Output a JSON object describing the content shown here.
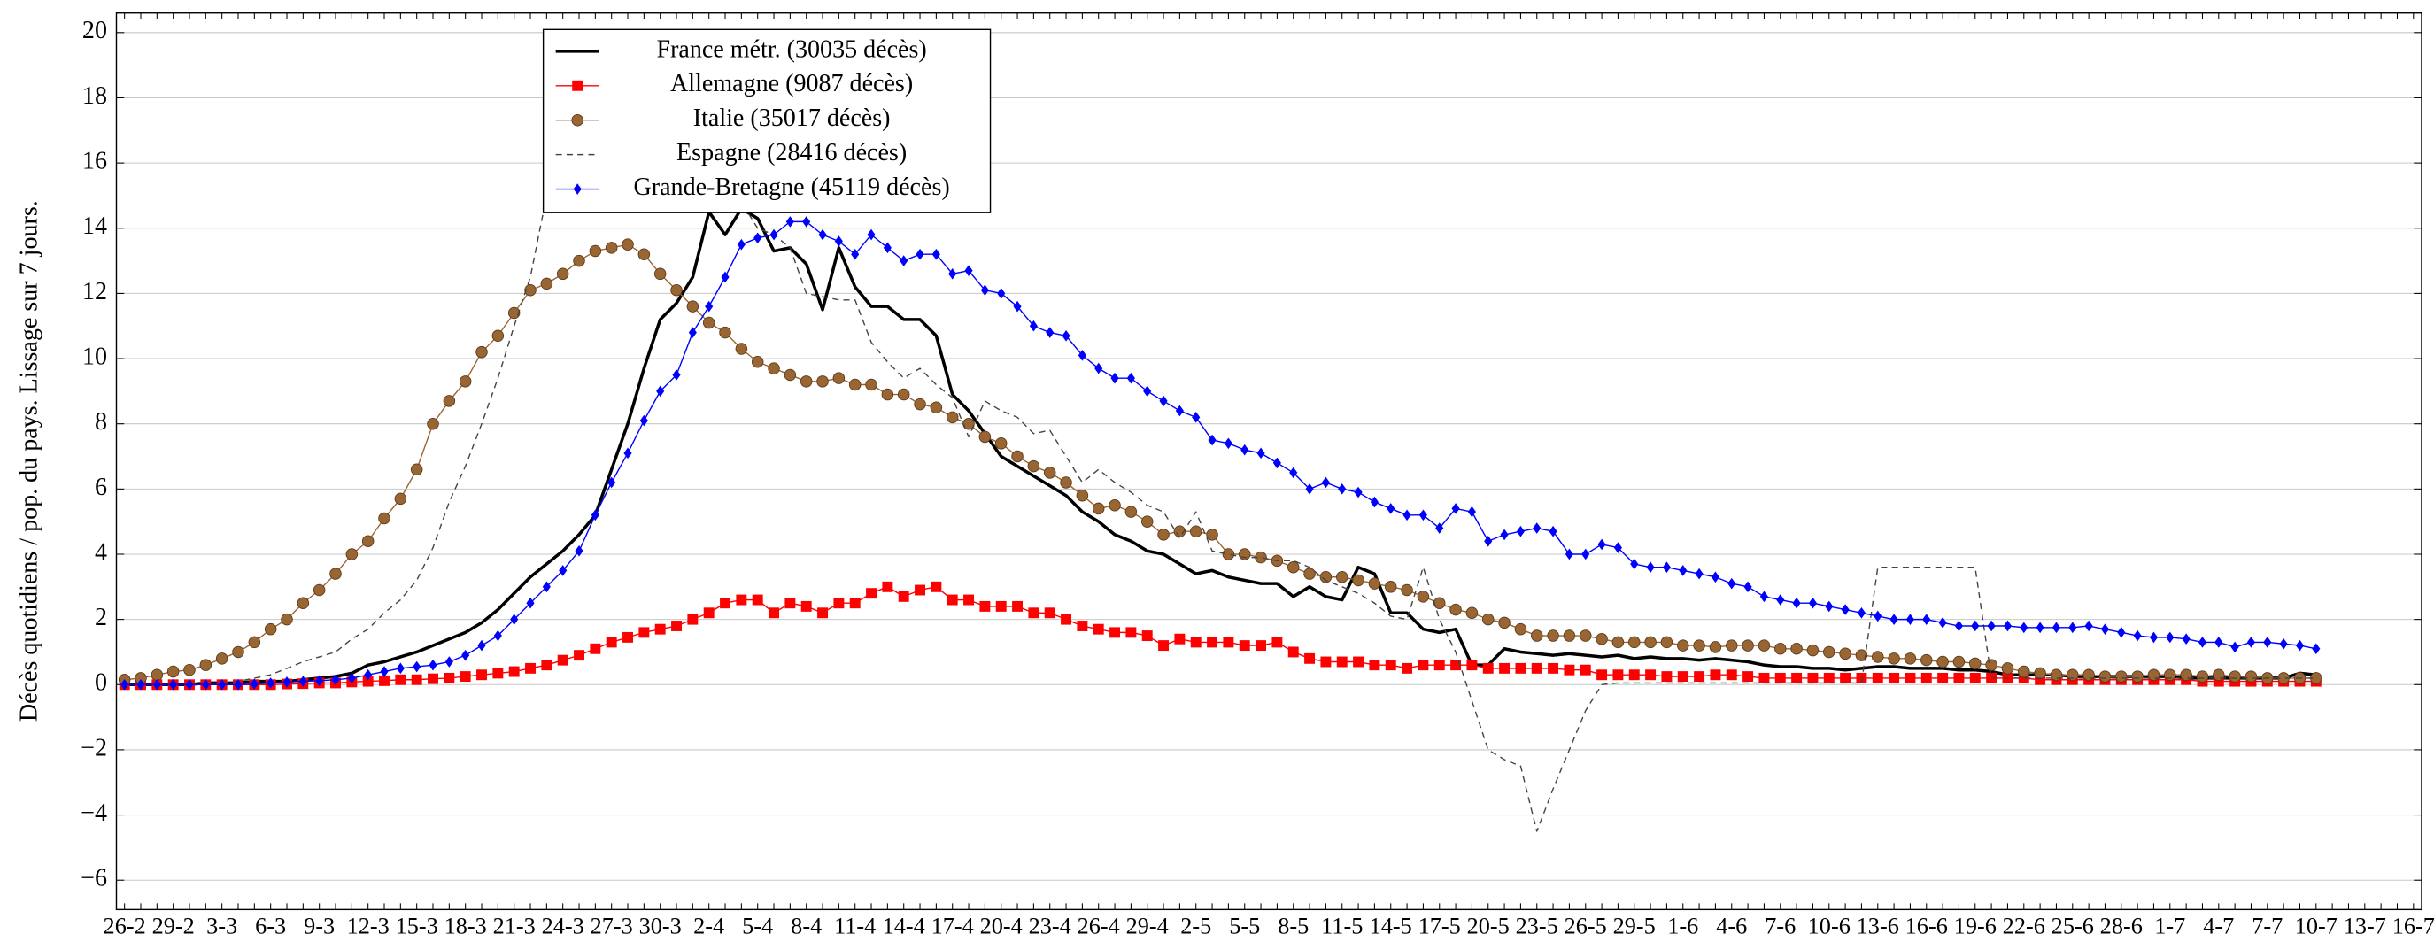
{
  "chart_data": {
    "type": "line",
    "y_label": "Décès quotidiens / pop. du pays. Lissage sur 7 jours.",
    "categories": [
      "26-2",
      null,
      null,
      "29-2",
      null,
      null,
      "3-3",
      null,
      null,
      "6-3",
      null,
      null,
      "9-3",
      null,
      null,
      "12-3",
      null,
      null,
      "15-3",
      null,
      null,
      "18-3",
      null,
      null,
      "21-3",
      null,
      null,
      "24-3",
      null,
      null,
      "27-3",
      null,
      null,
      "30-3",
      null,
      null,
      "2-4",
      null,
      null,
      "5-4",
      null,
      null,
      "8-4",
      null,
      null,
      "11-4",
      null,
      null,
      "14-4",
      null,
      null,
      "17-4",
      null,
      null,
      "20-4",
      null,
      null,
      "23-4",
      null,
      null,
      "26-4",
      null,
      null,
      "29-4",
      null,
      null,
      "2-5",
      null,
      null,
      "5-5",
      null,
      null,
      "8-5",
      null,
      null,
      "11-5",
      null,
      null,
      "14-5",
      null,
      null,
      "17-5",
      null,
      null,
      "20-5",
      null,
      null,
      "23-5",
      null,
      null,
      "26-5",
      null,
      null,
      "29-5",
      null,
      null,
      "1-6",
      null,
      null,
      "4-6",
      null,
      null,
      "7-6",
      null,
      null,
      "10-6",
      null,
      null,
      "13-6",
      null,
      null,
      "16-6",
      null,
      null,
      "19-6",
      null,
      null,
      "22-6",
      null,
      null,
      "25-6",
      null,
      null,
      "28-6",
      null,
      null,
      "1-7",
      null,
      null,
      "4-7",
      null,
      null,
      "7-7",
      null,
      null,
      "10-7",
      null,
      null,
      "13-7",
      null,
      null,
      "16-7"
    ],
    "series": [
      {
        "name": "France métr. (30035 décès)",
        "color": "#000000",
        "values": [
          0,
          0,
          0,
          0,
          0,
          0.05,
          0.05,
          0.05,
          0.1,
          0.1,
          0.1,
          0.15,
          0.2,
          0.25,
          0.35,
          0.6,
          0.7,
          0.85,
          1.0,
          1.2,
          1.4,
          1.6,
          1.9,
          2.3,
          2.8,
          3.3,
          3.7,
          4.1,
          4.6,
          5.2,
          6.6,
          8.0,
          9.7,
          11.2,
          11.7,
          12.5,
          14.5,
          13.8,
          14.6,
          14.3,
          13.3,
          13.4,
          12.9,
          11.5,
          13.4,
          12.2,
          11.6,
          11.6,
          11.2,
          11.2,
          10.7,
          8.9,
          8.4,
          7.7,
          7.0,
          6.7,
          6.4,
          6.1,
          5.8,
          5.3,
          5.0,
          4.6,
          4.4,
          4.1,
          4.0,
          3.7,
          3.4,
          3.5,
          3.3,
          3.2,
          3.1,
          3.1,
          2.7,
          3.0,
          2.7,
          2.6,
          3.6,
          3.4,
          2.2,
          2.2,
          1.7,
          1.6,
          1.7,
          0.6,
          0.6,
          1.1,
          1.0,
          0.95,
          0.9,
          0.95,
          0.9,
          0.85,
          0.9,
          0.8,
          0.85,
          0.8,
          0.8,
          0.75,
          0.8,
          0.75,
          0.7,
          0.6,
          0.55,
          0.55,
          0.5,
          0.5,
          0.45,
          0.5,
          0.55,
          0.55,
          0.5,
          0.5,
          0.5,
          0.45,
          0.45,
          0.4,
          0.3,
          0.3,
          0.3,
          0.3,
          0.25,
          0.25,
          0.25,
          0.25,
          0.25,
          0.25,
          0.25,
          0.2,
          0.2,
          0.2,
          0.2,
          0.2,
          0.2,
          0.2,
          0.35,
          0.3,
          null,
          null,
          null,
          null,
          null,
          null
        ]
      },
      {
        "name": "Allemagne (9087 décès)",
        "color": "#ff0000",
        "marker": "square",
        "values": [
          0,
          0,
          0,
          0,
          0,
          0,
          0,
          0,
          0,
          0,
          0.02,
          0.03,
          0.05,
          0.05,
          0.08,
          0.1,
          0.12,
          0.15,
          0.15,
          0.18,
          0.2,
          0.25,
          0.3,
          0.35,
          0.4,
          0.5,
          0.6,
          0.75,
          0.9,
          1.1,
          1.3,
          1.45,
          1.6,
          1.7,
          1.8,
          2.0,
          2.2,
          2.5,
          2.6,
          2.6,
          2.2,
          2.5,
          2.4,
          2.2,
          2.5,
          2.5,
          2.8,
          3.0,
          2.7,
          2.9,
          3.0,
          2.6,
          2.6,
          2.4,
          2.4,
          2.4,
          2.2,
          2.2,
          2.0,
          1.8,
          1.7,
          1.6,
          1.6,
          1.5,
          1.2,
          1.4,
          1.3,
          1.3,
          1.3,
          1.2,
          1.2,
          1.3,
          1.0,
          0.8,
          0.7,
          0.7,
          0.7,
          0.6,
          0.6,
          0.5,
          0.6,
          0.6,
          0.6,
          0.6,
          0.5,
          0.5,
          0.5,
          0.5,
          0.5,
          0.45,
          0.45,
          0.3,
          0.3,
          0.3,
          0.3,
          0.25,
          0.25,
          0.25,
          0.3,
          0.3,
          0.25,
          0.2,
          0.2,
          0.2,
          0.2,
          0.2,
          0.2,
          0.2,
          0.2,
          0.2,
          0.2,
          0.2,
          0.2,
          0.2,
          0.2,
          0.2,
          0.2,
          0.2,
          0.15,
          0.15,
          0.15,
          0.15,
          0.15,
          0.15,
          0.15,
          0.15,
          0.15,
          0.15,
          0.1,
          0.1,
          0.1,
          0.1,
          0.1,
          0.1,
          0.1,
          0.1,
          null,
          null,
          null,
          null,
          null,
          null
        ]
      },
      {
        "name": "Italie (35017 décès)",
        "color": "#996633",
        "marker": "circle",
        "values": [
          0.15,
          0.2,
          0.3,
          0.4,
          0.45,
          0.6,
          0.8,
          1.0,
          1.3,
          1.7,
          2.0,
          2.5,
          2.9,
          3.4,
          4.0,
          4.4,
          5.1,
          5.7,
          6.6,
          8.0,
          8.7,
          9.3,
          10.2,
          10.7,
          11.4,
          12.1,
          12.3,
          12.6,
          13.0,
          13.3,
          13.4,
          13.5,
          13.2,
          12.6,
          12.1,
          11.6,
          11.1,
          10.8,
          10.3,
          9.9,
          9.7,
          9.5,
          9.3,
          9.3,
          9.4,
          9.2,
          9.2,
          8.9,
          8.9,
          8.6,
          8.5,
          8.2,
          8.0,
          7.6,
          7.4,
          7.0,
          6.7,
          6.5,
          6.2,
          5.8,
          5.4,
          5.5,
          5.3,
          5.0,
          4.6,
          4.7,
          4.7,
          4.6,
          4.0,
          4.0,
          3.9,
          3.8,
          3.6,
          3.4,
          3.3,
          3.3,
          3.2,
          3.1,
          3.0,
          2.9,
          2.7,
          2.5,
          2.3,
          2.2,
          2.0,
          1.9,
          1.7,
          1.5,
          1.5,
          1.5,
          1.5,
          1.4,
          1.3,
          1.3,
          1.3,
          1.3,
          1.2,
          1.2,
          1.15,
          1.2,
          1.2,
          1.2,
          1.1,
          1.1,
          1.05,
          1.0,
          0.95,
          0.9,
          0.85,
          0.8,
          0.8,
          0.75,
          0.7,
          0.7,
          0.65,
          0.6,
          0.5,
          0.4,
          0.35,
          0.3,
          0.3,
          0.3,
          0.25,
          0.25,
          0.25,
          0.3,
          0.3,
          0.3,
          0.25,
          0.3,
          0.25,
          0.25,
          0.2,
          0.2,
          0.2,
          0.2,
          null,
          null,
          null,
          null,
          null,
          null
        ]
      },
      {
        "name": "Espagne (28416 décès)",
        "color": "#444444",
        "dashed": true,
        "values": [
          0,
          0,
          0,
          0,
          0,
          0.05,
          0.05,
          0.1,
          0.2,
          0.3,
          0.5,
          0.7,
          0.85,
          1.0,
          1.4,
          1.7,
          2.2,
          2.6,
          3.2,
          4.2,
          5.6,
          6.7,
          8.0,
          9.4,
          11.0,
          12.5,
          15.0,
          16.5,
          17.5,
          18.0,
          18.0,
          17.8,
          17.5,
          17.0,
          16.8,
          16.3,
          16.0,
          15.5,
          14.8,
          14.0,
          13.8,
          13.4,
          12.0,
          11.9,
          11.8,
          11.8,
          10.5,
          9.9,
          9.4,
          9.7,
          9.2,
          8.8,
          7.6,
          8.7,
          8.4,
          8.2,
          7.7,
          7.8,
          7.0,
          6.2,
          6.6,
          6.2,
          5.9,
          5.5,
          5.3,
          4.5,
          5.3,
          4.1,
          4.0,
          3.9,
          3.9,
          3.8,
          3.8,
          3.6,
          3.2,
          3.0,
          2.8,
          2.5,
          2.1,
          2.0,
          3.6,
          2.0,
          1.0,
          -0.5,
          -2.0,
          -2.3,
          -2.5,
          -4.5,
          -3.2,
          -2.0,
          -0.8,
          0.0,
          0.05,
          0.05,
          0.05,
          0.05,
          0.05,
          0.05,
          0.05,
          0.05,
          0.05,
          0.05,
          0.05,
          0.05,
          0.05,
          0.05,
          0.05,
          0.05,
          3.6,
          3.6,
          3.6,
          3.6,
          3.6,
          3.6,
          3.6,
          0.2,
          0.2,
          0.2,
          0.2,
          0.2,
          0.2,
          0.2,
          0.2,
          0.2,
          0.2,
          0.2,
          0.2,
          0.2,
          0.2,
          0.2,
          0.2,
          0.2,
          0.2,
          0.2,
          0.2,
          0.2,
          null,
          null,
          null,
          null,
          null,
          null
        ]
      },
      {
        "name": "Grande-Bretagne (45119 décès)",
        "color": "#0000ff",
        "marker": "diamond",
        "values": [
          0,
          0,
          0,
          0,
          0,
          0,
          0,
          0,
          0.02,
          0.05,
          0.08,
          0.1,
          0.12,
          0.15,
          0.2,
          0.3,
          0.4,
          0.5,
          0.55,
          0.6,
          0.7,
          0.9,
          1.2,
          1.5,
          2.0,
          2.5,
          3.0,
          3.5,
          4.1,
          5.2,
          6.2,
          7.1,
          8.1,
          9.0,
          9.5,
          10.8,
          11.6,
          12.5,
          13.5,
          13.7,
          13.8,
          14.2,
          14.2,
          13.8,
          13.6,
          13.2,
          13.8,
          13.4,
          13.0,
          13.2,
          13.2,
          12.6,
          12.7,
          12.1,
          12.0,
          11.6,
          11.0,
          10.8,
          10.7,
          10.1,
          9.7,
          9.4,
          9.4,
          9.0,
          8.7,
          8.4,
          8.2,
          7.5,
          7.4,
          7.2,
          7.1,
          6.8,
          6.5,
          6.0,
          6.2,
          6.0,
          5.9,
          5.6,
          5.4,
          5.2,
          5.2,
          4.8,
          5.4,
          5.3,
          4.4,
          4.6,
          4.7,
          4.8,
          4.7,
          4.0,
          4.0,
          4.3,
          4.2,
          3.7,
          3.6,
          3.6,
          3.5,
          3.4,
          3.3,
          3.1,
          3.0,
          2.7,
          2.6,
          2.5,
          2.5,
          2.4,
          2.3,
          2.2,
          2.1,
          2.0,
          2.0,
          2.0,
          1.9,
          1.8,
          1.8,
          1.8,
          1.8,
          1.75,
          1.75,
          1.75,
          1.75,
          1.8,
          1.7,
          1.6,
          1.5,
          1.45,
          1.45,
          1.4,
          1.3,
          1.3,
          1.15,
          1.3,
          1.3,
          1.25,
          1.2,
          1.1,
          null,
          null,
          null,
          null,
          null,
          null
        ]
      }
    ],
    "ylim": [
      -6.9,
      20.6
    ],
    "yticks": [
      {
        "value": -6,
        "label": "−6"
      },
      {
        "value": -4,
        "label": "−4"
      },
      {
        "value": -2,
        "label": "−2"
      },
      0,
      2,
      4,
      6,
      8,
      10,
      12,
      14,
      16,
      18,
      20
    ],
    "grid": true
  }
}
